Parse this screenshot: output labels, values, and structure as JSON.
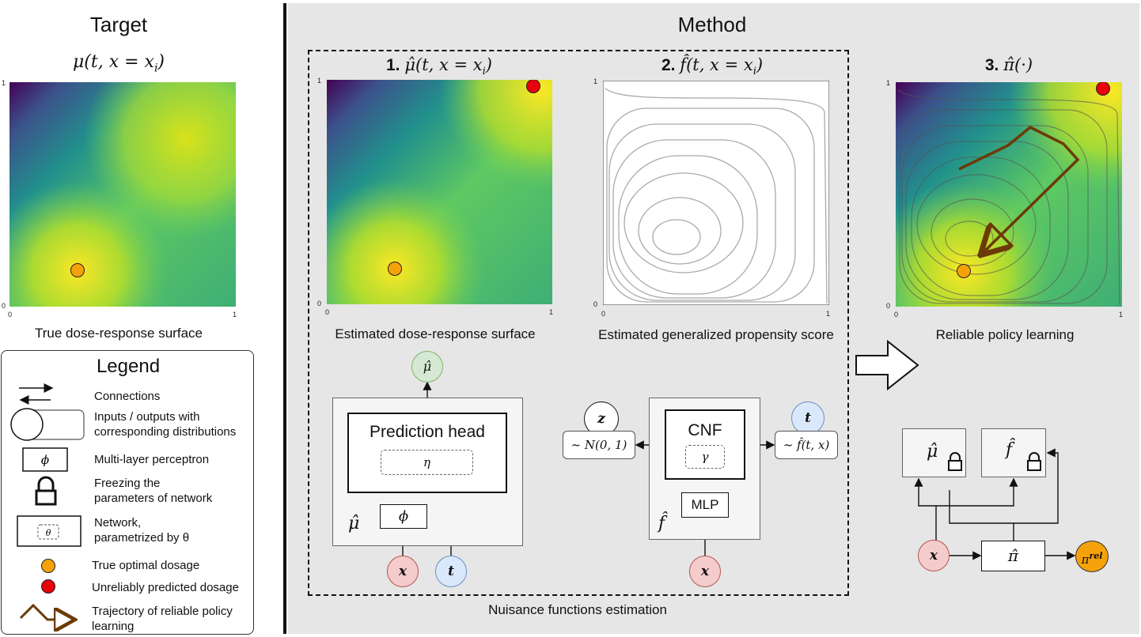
{
  "target": {
    "title": "Target",
    "formula": "μ(t, x = x",
    "formula_sub": "i",
    "caption": "True dose-response surface"
  },
  "method": {
    "title": "Method",
    "step1": {
      "num": "1.",
      "formula": "μ̂(t, x = x",
      "sub": "i",
      "caption": "Estimated dose-response surface"
    },
    "step2": {
      "num": "2.",
      "formula": "f̂(t, x = x",
      "sub": "i",
      "caption": "Estimated generalized propensity score"
    },
    "step3": {
      "num": "3.",
      "formula": "π̂(·)",
      "caption": "Reliable policy learning"
    },
    "nuisance_caption": "Nuisance functions estimation"
  },
  "ticks": {
    "zero": "0",
    "one": "1"
  },
  "legend": {
    "title": "Legend",
    "items": [
      {
        "label": "Connections"
      },
      {
        "label": "Inputs / outputs with\ncorresponding distributions"
      },
      {
        "label": "Multi-layer perceptron",
        "symbol": "ϕ"
      },
      {
        "label": "Freezing the\nparameters of network"
      },
      {
        "label": "Network,\nparametrized by θ",
        "symbol": "θ"
      },
      {
        "label": "True optimal dosage"
      },
      {
        "label": "Unreliably predicted dosage"
      },
      {
        "label": "Trajectory of reliable policy\nlearning"
      }
    ]
  },
  "mu_net": {
    "output": "μ̂",
    "head_label": "Prediction head",
    "eta": "η",
    "phi": "ϕ",
    "corner": "μ̂",
    "input_x": "x",
    "input_t": "t"
  },
  "f_net": {
    "z": "z",
    "z_dist": "~ N(0, 1)",
    "cnf_label": "CNF",
    "gamma": "γ",
    "mlp_label": "MLP",
    "corner": "f̂",
    "t": "t",
    "t_dist": "~ f̂(t, x)",
    "input_x": "x"
  },
  "policy": {
    "mu_box": "μ̂",
    "f_box": "f̂",
    "x": "x",
    "pi": "π̂",
    "out_base": "π",
    "out_sup": "rel"
  },
  "colors": {
    "orange_dot": "#f5a20a",
    "red_dot": "#e8000b",
    "trajectory": "#6b3a07",
    "input_pink": "#f4cccc",
    "input_pink_border": "#b85450",
    "input_blue": "#dae8fc",
    "input_blue_border": "#6c8ebf",
    "output_green": "#d5e8d4",
    "output_green_border": "#82b366",
    "network_fill": "#f5f5f5"
  }
}
